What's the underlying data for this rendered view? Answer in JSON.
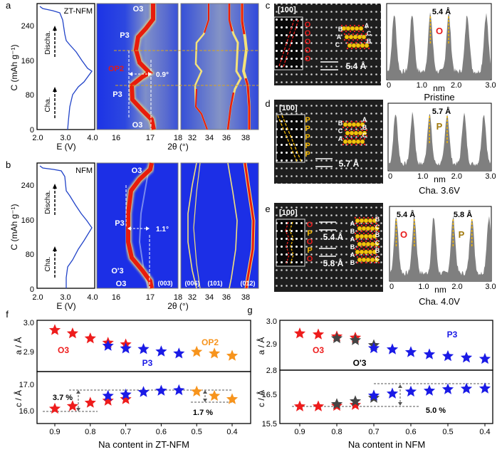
{
  "colors": {
    "o3": "#ee1c1c",
    "p3": "#1a1ae6",
    "op2": "#f7941d",
    "o3prime": "#444444",
    "heat_bg": "#2a3fe0",
    "profile": "#7f7f7f",
    "guide": "#d9a520"
  },
  "panel_a": {
    "label": "a",
    "sample": "ZT-NFM",
    "ylabel": "C (mAh g⁻¹)",
    "yticks": [
      "0",
      "80",
      "160",
      "240"
    ],
    "xticks": [
      "2.0",
      "3.0",
      "4.0"
    ],
    "xlabel": "E (V)",
    "discharge": "Discha.",
    "charge": "Cha.",
    "phases": {
      "top": "O3",
      "p3_upper": "P3",
      "op2": "OP2",
      "p3_lower": "P3",
      "bottom": "O3"
    },
    "shift": "0.9°",
    "xrd_ticks_1": [
      "16",
      "17",
      "18"
    ],
    "xrd_ticks_2": [
      "32",
      "34",
      "36",
      "38"
    ],
    "xrd_xlabel": "2θ (°)"
  },
  "panel_b": {
    "label": "b",
    "sample": "NFM",
    "ylabel": "C (mAh g⁻¹)",
    "yticks": [
      "0",
      "80",
      "160",
      "240"
    ],
    "xticks": [
      "2.0",
      "3.0",
      "4.0"
    ],
    "xlabel": "E (V)",
    "discharge": "Discha.",
    "charge": "Cha.",
    "phases": {
      "top": "O3",
      "p3": "P3",
      "o3prime": "O'3",
      "bottom": "O3"
    },
    "shift": "1.1°",
    "reflections": [
      "(003)",
      "(006)",
      "(101)",
      "(012)"
    ],
    "xrd_ticks_1": [
      "16",
      "17",
      "18"
    ],
    "xrd_ticks_2": [
      "32",
      "34",
      "36",
      "38"
    ],
    "xrd_xlabel": "2θ (°)"
  },
  "panel_c": {
    "label": "c",
    "zone": "[100]",
    "stack_type": [
      "O",
      "O",
      "O",
      "O",
      "O"
    ],
    "stack_left": [
      "B",
      "A",
      "C"
    ],
    "stack_right": [
      "A",
      "C",
      "B"
    ],
    "spacing": "5.4 Å",
    "profile_title": "5.4 Å",
    "profile_marks": [
      "O"
    ],
    "profile_ticks": [
      "0",
      "1.0",
      "2.0",
      "3.0"
    ],
    "profile_xlabel": "nm",
    "caption": "Pristine"
  },
  "panel_d": {
    "label": "d",
    "zone": "[100]",
    "stack_type": [
      "P",
      "P",
      "P",
      "P",
      "P"
    ],
    "stack_left": [
      "B",
      "C",
      "A"
    ],
    "stack_right": [
      "A",
      "B",
      "C"
    ],
    "spacing": "5.7 Å",
    "profile_title": "5.7 Å",
    "profile_marks": [
      "P"
    ],
    "profile_ticks": [
      "0",
      "1.0",
      "2.0",
      "3.0"
    ],
    "profile_xlabel": "nm",
    "caption": "Cha. 3.6V"
  },
  "panel_e": {
    "label": "e",
    "zone": "[100]",
    "stack_type": [
      "O",
      "P",
      "O",
      "P",
      "O"
    ],
    "stack_left": [
      "A",
      "B",
      "A",
      "B",
      "A",
      "B"
    ],
    "stack_right": [
      "B",
      "C",
      "B",
      "C",
      "B",
      "C"
    ],
    "spacing_1": "5.4 Å",
    "spacing_2": "5.8 Å",
    "profile_title_1": "5.4 Å",
    "profile_title_2": "5.8 Å",
    "profile_marks": [
      "O",
      "P"
    ],
    "profile_ticks": [
      "0",
      "1.0",
      "2.0",
      "3.0"
    ],
    "profile_xlabel": "nm",
    "caption": "Cha. 4.0V"
  },
  "chart_data": [
    {
      "id": "f",
      "type": "scatter",
      "label": "f",
      "xlabel": "Na content in ZT-NFM",
      "xlim": [
        0.95,
        0.35
      ],
      "xticks": [
        "0.9",
        "0.8",
        "0.7",
        "0.6",
        "0.5",
        "0.4"
      ],
      "top": {
        "ylabel": "a / Å",
        "ylim": [
          2.85,
          3.0
        ],
        "yticks": [
          "3.0",
          "2.9"
        ],
        "series": [
          {
            "name": "O3",
            "color": "#ee1c1c",
            "x": [
              0.9,
              0.85,
              0.8,
              0.75,
              0.7
            ],
            "y": [
              2.975,
              2.965,
              2.95,
              2.937,
              2.932
            ]
          },
          {
            "name": "P3",
            "color": "#1a1ae6",
            "x": [
              0.75,
              0.7,
              0.65,
              0.6,
              0.55
            ],
            "y": [
              2.928,
              2.92,
              2.918,
              2.911,
              2.905
            ]
          },
          {
            "name": "OP2",
            "color": "#f7941d",
            "x": [
              0.5,
              0.45,
              0.4
            ],
            "y": [
              2.91,
              2.905,
              2.898
            ]
          }
        ]
      },
      "bottom": {
        "ylabel": "c / Å",
        "ylim": [
          15.5,
          17.5
        ],
        "yticks": [
          "17.0",
          "16.0"
        ],
        "series": [
          {
            "name": "O3",
            "color": "#ee1c1c",
            "x": [
              0.9,
              0.85,
              0.8,
              0.75,
              0.7
            ],
            "y": [
              16.05,
              16.15,
              16.28,
              16.36,
              16.42
            ]
          },
          {
            "name": "P3",
            "color": "#1a1ae6",
            "x": [
              0.75,
              0.7,
              0.65,
              0.6,
              0.55
            ],
            "y": [
              16.55,
              16.6,
              16.7,
              16.75,
              16.77
            ]
          },
          {
            "name": "OP2",
            "color": "#f7941d",
            "x": [
              0.5,
              0.45,
              0.4
            ],
            "y": [
              16.72,
              16.55,
              16.42
            ]
          }
        ],
        "annotations": [
          "3.7 %",
          "1.7 %"
        ]
      }
    },
    {
      "id": "g",
      "type": "scatter",
      "label": "g",
      "xlabel": "Na content in NFM",
      "xlim": [
        0.93,
        0.38
      ],
      "xticks": [
        "0.9",
        "0.8",
        "0.7",
        "0.6",
        "0.5",
        "0.4"
      ],
      "top": {
        "ylabel": "a / Å",
        "ylim": [
          2.8,
          3.0
        ],
        "yticks": [
          "3.0",
          "2.9",
          "2.8"
        ],
        "series": [
          {
            "name": "O3",
            "color": "#ee1c1c",
            "x": [
              0.9,
              0.85,
              0.8,
              0.75
            ],
            "y": [
              2.947,
              2.943,
              2.935,
              2.93
            ]
          },
          {
            "name": "O'3",
            "color": "#444444",
            "x": [
              0.8,
              0.75,
              0.7
            ],
            "y": [
              2.928,
              2.92,
              2.9
            ]
          },
          {
            "name": "P3",
            "color": "#1a1ae6",
            "x": [
              0.7,
              0.65,
              0.6,
              0.55,
              0.5,
              0.45,
              0.4
            ],
            "y": [
              2.888,
              2.883,
              2.872,
              2.863,
              2.856,
              2.85,
              2.845
            ]
          }
        ]
      },
      "bottom": {
        "ylabel": "c / Å",
        "ylim": [
          15.5,
          17.0
        ],
        "yticks": [
          "16.5",
          "15.5"
        ],
        "series": [
          {
            "name": "O3",
            "color": "#ee1c1c",
            "x": [
              0.9,
              0.85,
              0.8,
              0.75
            ],
            "y": [
              16.1,
              16.1,
              16.12,
              16.15
            ]
          },
          {
            "name": "O'3",
            "color": "#444444",
            "x": [
              0.8,
              0.75,
              0.7
            ],
            "y": [
              16.18,
              16.28,
              16.4
            ]
          },
          {
            "name": "P3",
            "color": "#1a1ae6",
            "x": [
              0.7,
              0.65,
              0.6,
              0.55,
              0.5,
              0.45,
              0.4
            ],
            "y": [
              16.48,
              16.55,
              16.62,
              16.65,
              16.7,
              16.72,
              16.73
            ]
          }
        ],
        "annotations": [
          "5.0 %"
        ]
      }
    }
  ]
}
